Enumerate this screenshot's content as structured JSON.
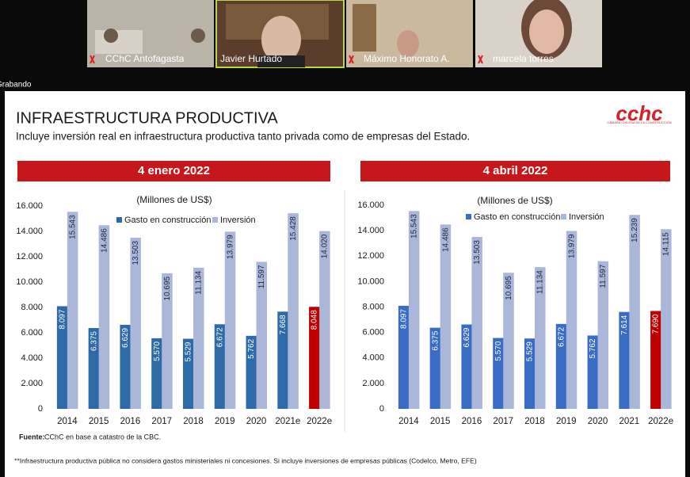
{
  "participants": [
    {
      "name": "CChC Antofagasta"
    },
    {
      "name": "Javier Hurtado"
    },
    {
      "name": "Máximo Honorato A."
    },
    {
      "name": "marcela torres"
    }
  ],
  "recording": "Grabando",
  "slide": {
    "title": "INFRAESTRUCTURA PRODUCTIVA",
    "subtitle": "Incluye inversión real en infraestructura productiva tanto privada como de empresas del Estado.",
    "logo": {
      "text": "cchc",
      "tagline": "CÁMARA CHILENA DE LA CONSTRUCCIÓN"
    },
    "source_label": "Fuente:",
    "source": "CChC en base a catastro de la CBC.",
    "footnote": "**Infraestructura productiva pública no considera gastos ministeriales ni concesiones. Si incluye inversiones de empresas públicas (Codelco, Metro, EFE)"
  },
  "chart_data": [
    {
      "type": "bar",
      "title": "4 enero 2022",
      "y_label": "(Millones de US$)",
      "categories": [
        "2014",
        "2015",
        "2016",
        "2017",
        "2018",
        "2019",
        "2020",
        "2021e",
        "2022e"
      ],
      "series": [
        {
          "name": "Gasto en construcción",
          "color": "#2e6aa8",
          "colors": [
            "#2e6aa8",
            "#2e6aa8",
            "#2e6aa8",
            "#2e6aa8",
            "#2e6aa8",
            "#2e6aa8",
            "#2e6aa8",
            "#2e6aa8",
            "#c00000"
          ],
          "values": [
            8097,
            6375,
            6629,
            5570,
            5529,
            6672,
            5762,
            7668,
            8048
          ],
          "value_labels": [
            "8.097",
            "6.375",
            "6.629",
            "5.570",
            "5.529",
            "6.672",
            "5.762",
            "7.668",
            "8.048"
          ]
        },
        {
          "name": "Inversión",
          "color": "#aab7d9",
          "values": [
            15543,
            14486,
            13503,
            10695,
            11134,
            13979,
            11597,
            15428,
            14020
          ],
          "value_labels": [
            "15.543",
            "14.486",
            "13.503",
            "10.695",
            "11.134",
            "13.979",
            "11.597",
            "15.428",
            "14.020"
          ]
        }
      ],
      "ylim": [
        0,
        16000
      ],
      "yticks": [
        0,
        {
          "value": 2000,
          "label": "2.000"
        },
        {
          "value": 4000,
          "label": "4.000"
        },
        {
          "value": 6000,
          "label": "6.000"
        },
        {
          "value": 8000,
          "label": "8.000"
        },
        {
          "value": 10000,
          "label": "10.000"
        },
        {
          "value": 12000,
          "label": "12.000"
        },
        {
          "value": 14000,
          "label": "14.000"
        },
        {
          "value": 16000,
          "label": "16.000"
        }
      ]
    },
    {
      "type": "bar",
      "title": "4 abril 2022",
      "y_label": "(Millones de US$)",
      "categories": [
        "2014",
        "2015",
        "2016",
        "2017",
        "2018",
        "2019",
        "2020",
        "2021",
        "2022e"
      ],
      "series": [
        {
          "name": "Gasto en construcción",
          "color": "#3a6cc6",
          "colors": [
            "#3a6cc6",
            "#3a6cc6",
            "#3a6cc6",
            "#3a6cc6",
            "#3a6cc6",
            "#3a6cc6",
            "#3a6cc6",
            "#3a6cc6",
            "#c00000"
          ],
          "values": [
            8097,
            6375,
            6629,
            5570,
            5529,
            6672,
            5762,
            7614,
            7690
          ],
          "value_labels": [
            "8.097",
            "6.375",
            "6.629",
            "5.570",
            "5.529",
            "6.672",
            "5.762",
            "7.614",
            "7.690"
          ]
        },
        {
          "name": "Inversión",
          "color": "#aab7d9",
          "values": [
            15543,
            14486,
            13503,
            10695,
            11134,
            13979,
            11597,
            15239,
            14115
          ],
          "value_labels": [
            "15.543",
            "14.486",
            "13.503",
            "10.695",
            "11.134",
            "13.979",
            "11.597",
            "15.239",
            "14.115"
          ]
        }
      ],
      "ylim": [
        0,
        16000
      ],
      "yticks": [
        0,
        {
          "value": 2000,
          "label": "2.000"
        },
        {
          "value": 4000,
          "label": "4.000"
        },
        {
          "value": 6000,
          "label": "6.000"
        },
        {
          "value": 8000,
          "label": "8.000"
        },
        {
          "value": 10000,
          "label": "10.000"
        },
        {
          "value": 12000,
          "label": "12.000"
        },
        {
          "value": 14000,
          "label": "14.000"
        },
        {
          "value": 16000,
          "label": "16.000"
        }
      ]
    }
  ]
}
